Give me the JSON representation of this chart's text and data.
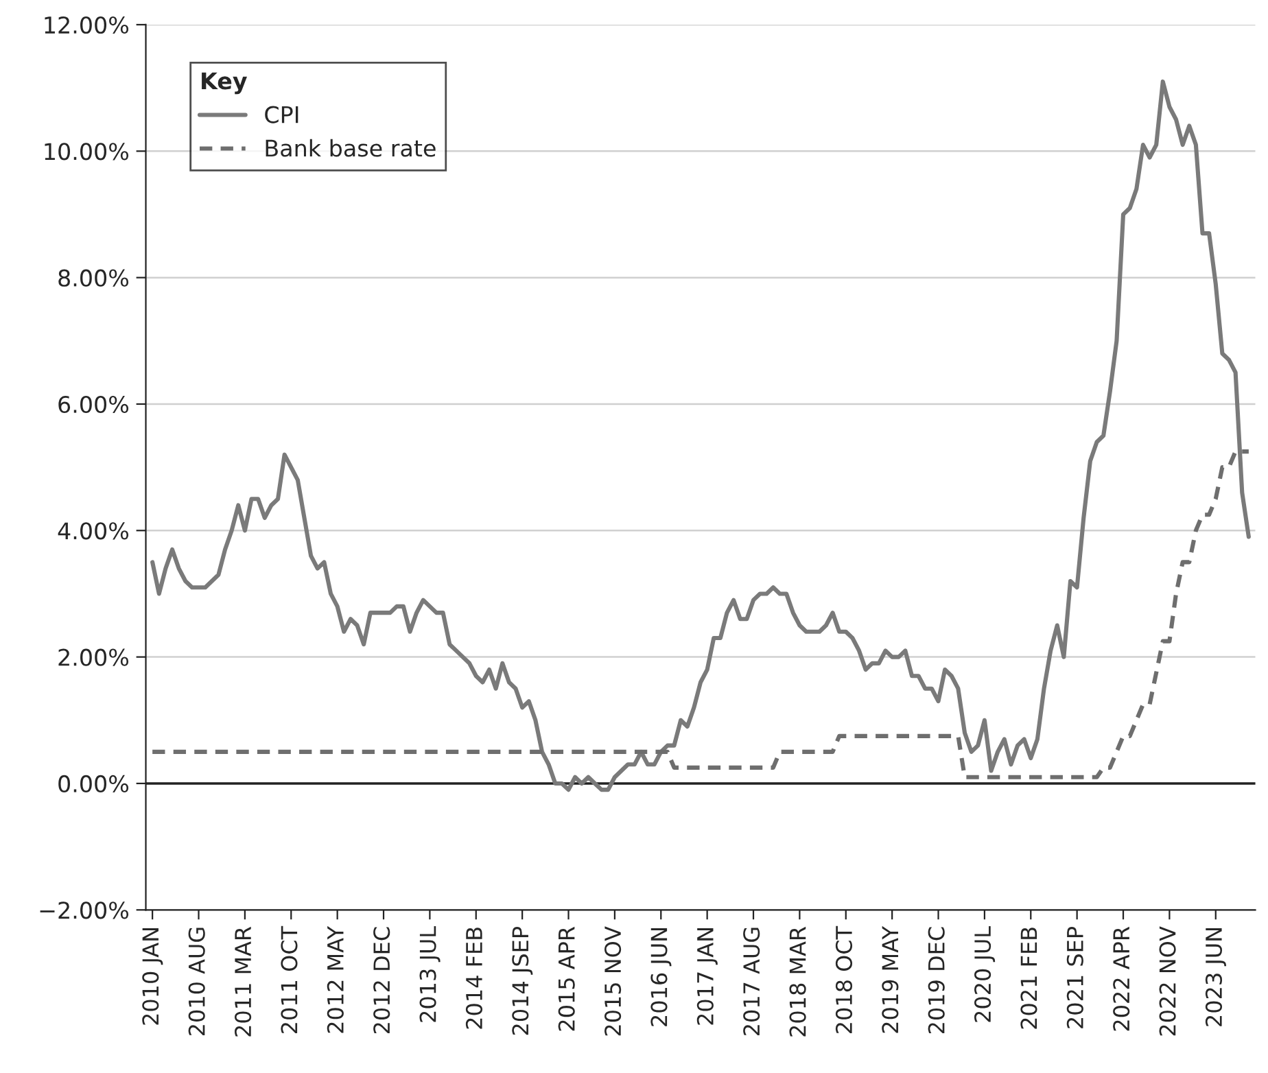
{
  "chart_data": {
    "type": "line",
    "categories": [
      "2010 JAN",
      null,
      null,
      null,
      null,
      null,
      null,
      "2010 AUG",
      null,
      null,
      null,
      null,
      null,
      null,
      "2011 MAR",
      null,
      null,
      null,
      null,
      null,
      null,
      "2011 OCT",
      null,
      null,
      null,
      null,
      null,
      null,
      "2012 MAY",
      null,
      null,
      null,
      null,
      null,
      null,
      "2012 DEC",
      null,
      null,
      null,
      null,
      null,
      null,
      "2013 JUL",
      null,
      null,
      null,
      null,
      null,
      null,
      "2014 FEB",
      null,
      null,
      null,
      null,
      null,
      null,
      "2014 JSEP",
      null,
      null,
      null,
      null,
      null,
      null,
      "2015 APR",
      null,
      null,
      null,
      null,
      null,
      null,
      "2015 NOV",
      null,
      null,
      null,
      null,
      null,
      null,
      "2016 JUN",
      null,
      null,
      null,
      null,
      null,
      null,
      "2017 JAN",
      null,
      null,
      null,
      null,
      null,
      null,
      "2017 AUG",
      null,
      null,
      null,
      null,
      null,
      null,
      "2018 MAR",
      null,
      null,
      null,
      null,
      null,
      null,
      "2018 OCT",
      null,
      null,
      null,
      null,
      null,
      null,
      "2019 MAY",
      null,
      null,
      null,
      null,
      null,
      null,
      "2019 DEC",
      null,
      null,
      null,
      null,
      null,
      null,
      "2020 JUL",
      null,
      null,
      null,
      null,
      null,
      null,
      "2021 FEB",
      null,
      null,
      null,
      null,
      null,
      null,
      "2021 SEP",
      null,
      null,
      null,
      null,
      null,
      null,
      "2022 APR",
      null,
      null,
      null,
      null,
      null,
      null,
      "2022 NOV",
      null,
      null,
      null,
      null,
      null,
      null,
      "2023 JUN",
      null,
      null,
      null,
      null,
      null
    ],
    "series": [
      {
        "name": "CPI",
        "color": "#7a7a7a",
        "line_style": "solid",
        "values": [
          3.5,
          3.0,
          3.4,
          3.7,
          3.4,
          3.2,
          3.1,
          3.1,
          3.1,
          3.2,
          3.3,
          3.7,
          4.0,
          4.4,
          4.0,
          4.5,
          4.5,
          4.2,
          4.4,
          4.5,
          5.2,
          5.0,
          4.8,
          4.2,
          3.6,
          3.4,
          3.5,
          3.0,
          2.8,
          2.4,
          2.6,
          2.5,
          2.2,
          2.7,
          2.7,
          2.7,
          2.7,
          2.8,
          2.8,
          2.4,
          2.7,
          2.9,
          2.8,
          2.7,
          2.7,
          2.2,
          2.1,
          2.0,
          1.9,
          1.7,
          1.6,
          1.8,
          1.5,
          1.9,
          1.6,
          1.5,
          1.2,
          1.3,
          1.0,
          0.5,
          0.3,
          0.0,
          0.0,
          -0.1,
          0.1,
          0.0,
          0.1,
          0.0,
          -0.1,
          -0.1,
          0.1,
          0.2,
          0.3,
          0.3,
          0.5,
          0.3,
          0.3,
          0.5,
          0.6,
          0.6,
          1.0,
          0.9,
          1.2,
          1.6,
          1.8,
          2.3,
          2.3,
          2.7,
          2.9,
          2.6,
          2.6,
          2.9,
          3.0,
          3.0,
          3.1,
          3.0,
          3.0,
          2.7,
          2.5,
          2.4,
          2.4,
          2.4,
          2.5,
          2.7,
          2.4,
          2.4,
          2.3,
          2.1,
          1.8,
          1.9,
          1.9,
          2.1,
          2.0,
          2.0,
          2.1,
          1.7,
          1.7,
          1.5,
          1.5,
          1.3,
          1.8,
          1.7,
          1.5,
          0.8,
          0.5,
          0.6,
          1.0,
          0.2,
          0.5,
          0.7,
          0.3,
          0.6,
          0.7,
          0.4,
          0.7,
          1.5,
          2.1,
          2.5,
          2.0,
          3.2,
          3.1,
          4.2,
          5.1,
          5.4,
          5.5,
          6.2,
          7.0,
          9.0,
          9.1,
          9.4,
          10.1,
          9.9,
          10.1,
          11.1,
          10.7,
          10.5,
          10.1,
          10.4,
          10.1,
          8.7,
          8.7,
          7.9,
          6.8,
          6.7,
          6.5,
          4.6,
          3.9
        ]
      },
      {
        "name": "Bank base rate",
        "color": "#6e6e6e",
        "line_style": "dashed",
        "values": [
          0.5,
          0.5,
          0.5,
          0.5,
          0.5,
          0.5,
          0.5,
          0.5,
          0.5,
          0.5,
          0.5,
          0.5,
          0.5,
          0.5,
          0.5,
          0.5,
          0.5,
          0.5,
          0.5,
          0.5,
          0.5,
          0.5,
          0.5,
          0.5,
          0.5,
          0.5,
          0.5,
          0.5,
          0.5,
          0.5,
          0.5,
          0.5,
          0.5,
          0.5,
          0.5,
          0.5,
          0.5,
          0.5,
          0.5,
          0.5,
          0.5,
          0.5,
          0.5,
          0.5,
          0.5,
          0.5,
          0.5,
          0.5,
          0.5,
          0.5,
          0.5,
          0.5,
          0.5,
          0.5,
          0.5,
          0.5,
          0.5,
          0.5,
          0.5,
          0.5,
          0.5,
          0.5,
          0.5,
          0.5,
          0.5,
          0.5,
          0.5,
          0.5,
          0.5,
          0.5,
          0.5,
          0.5,
          0.5,
          0.5,
          0.5,
          0.5,
          0.5,
          0.5,
          0.5,
          0.25,
          0.25,
          0.25,
          0.25,
          0.25,
          0.25,
          0.25,
          0.25,
          0.25,
          0.25,
          0.25,
          0.25,
          0.25,
          0.25,
          0.25,
          0.25,
          0.5,
          0.5,
          0.5,
          0.5,
          0.5,
          0.5,
          0.5,
          0.5,
          0.5,
          0.75,
          0.75,
          0.75,
          0.75,
          0.75,
          0.75,
          0.75,
          0.75,
          0.75,
          0.75,
          0.75,
          0.75,
          0.75,
          0.75,
          0.75,
          0.75,
          0.75,
          0.75,
          0.75,
          0.1,
          0.1,
          0.1,
          0.1,
          0.1,
          0.1,
          0.1,
          0.1,
          0.1,
          0.1,
          0.1,
          0.1,
          0.1,
          0.1,
          0.1,
          0.1,
          0.1,
          0.1,
          0.1,
          0.1,
          0.1,
          0.25,
          0.25,
          0.5,
          0.75,
          0.75,
          1.0,
          1.25,
          1.25,
          1.75,
          2.25,
          2.25,
          3.0,
          3.5,
          3.5,
          4.0,
          4.25,
          4.25,
          4.5,
          5.0,
          5.0,
          5.25,
          5.25,
          5.25
        ]
      }
    ],
    "ylim": [
      -2,
      12
    ],
    "yticks": [
      {
        "value": -2,
        "label": "−2.00%"
      },
      {
        "value": 0,
        "label": "0.00%"
      },
      {
        "value": 2,
        "label": "2.00%"
      },
      {
        "value": 4,
        "label": "4.00%"
      },
      {
        "value": 6,
        "label": "6.00%"
      },
      {
        "value": 8,
        "label": "8.00%"
      },
      {
        "value": 10,
        "label": "10.00%"
      },
      {
        "value": 12,
        "label": "12.00%"
      }
    ],
    "ref_lines": [
      {
        "axis": "y",
        "value": 0,
        "color": "#222222"
      }
    ],
    "grid": "y",
    "legend": "top left",
    "legend_title": "Key",
    "marker": "none"
  }
}
